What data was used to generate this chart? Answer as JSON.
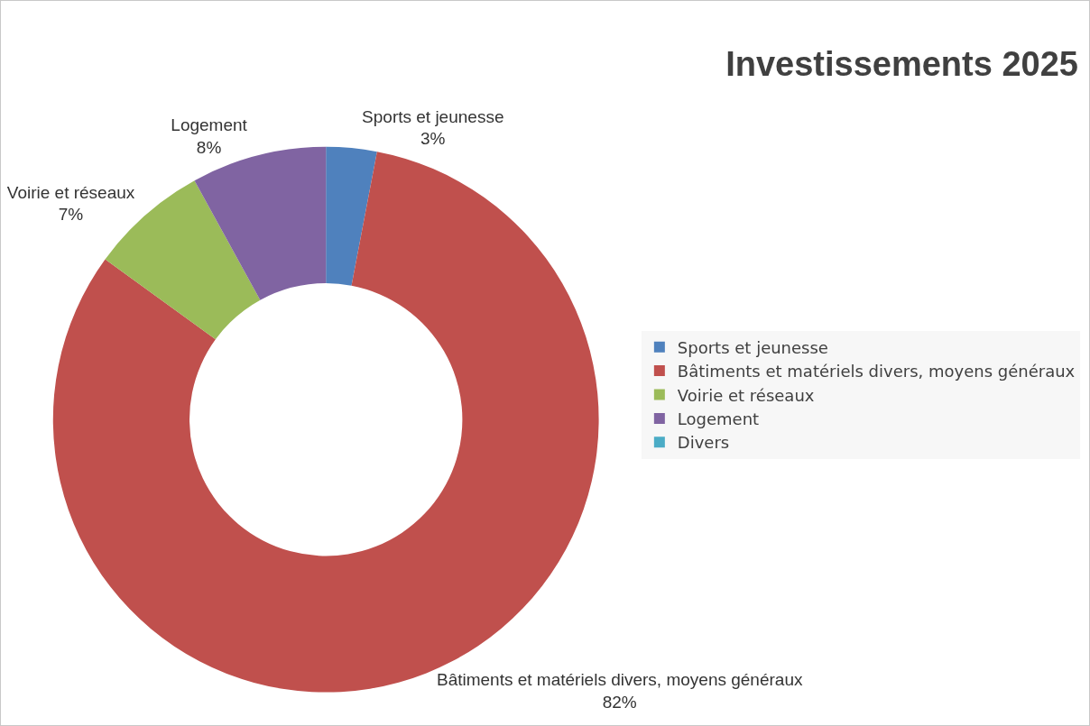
{
  "chart_data": {
    "type": "donut",
    "title": "Investissements 2025",
    "categories": [
      "Sports et jeunesse",
      "Bâtiments et matériels divers, moyens généraux",
      "Voirie et réseaux",
      "Logement",
      "Divers"
    ],
    "values": [
      3,
      82,
      7,
      8,
      0
    ],
    "value_labels": [
      "3%",
      "82%",
      "7%",
      "8%",
      null
    ],
    "colors": [
      "#4f81bd",
      "#c0504d",
      "#9bbb59",
      "#8064a2",
      "#4bacc6"
    ],
    "legend": "right"
  }
}
